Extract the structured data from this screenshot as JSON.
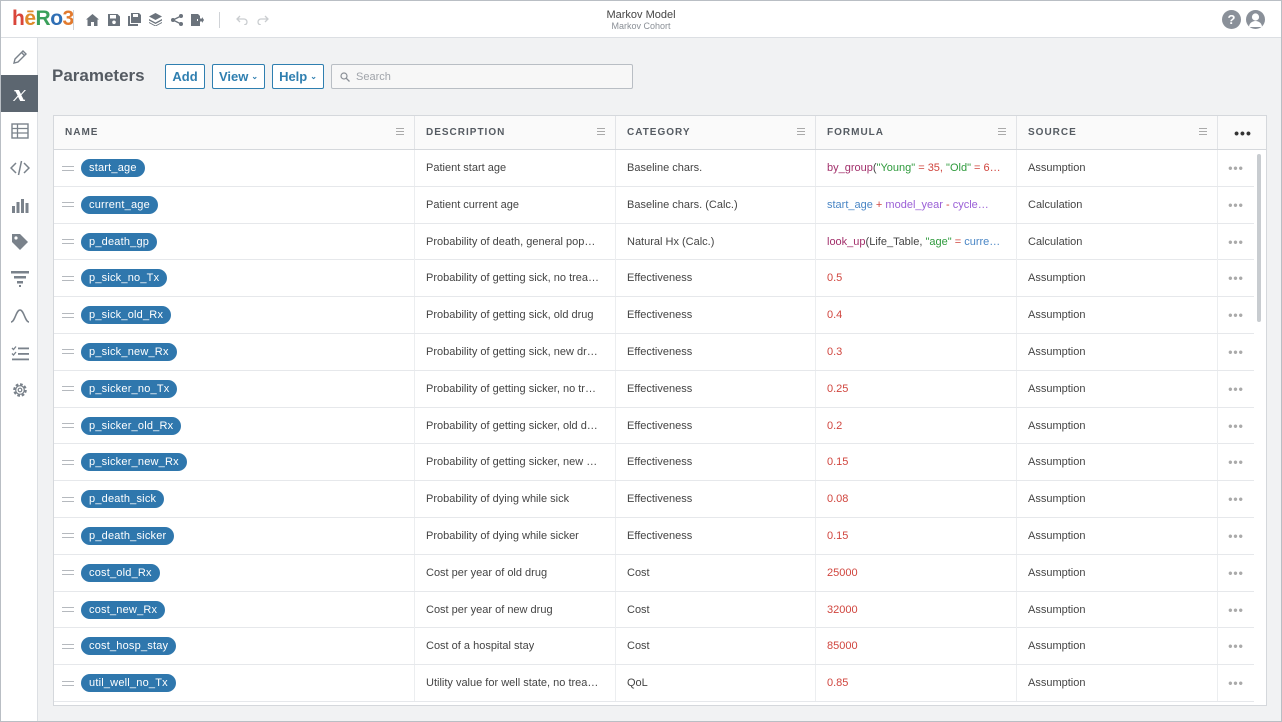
{
  "app": {
    "title": "Markov Model",
    "subtitle": "Markov Cohort"
  },
  "toolbar": {
    "icons": [
      "home-icon",
      "save-icon",
      "save-as-icon",
      "layers-icon",
      "share-icon",
      "export-icon",
      "undo-icon",
      "redo-icon"
    ]
  },
  "header": {
    "help": "?"
  },
  "sidebar": {
    "items": [
      "pencil-icon",
      "variable-icon",
      "table-icon",
      "code-icon",
      "bar-chart-icon",
      "tag-icon",
      "filter-icon",
      "distribution-icon",
      "checklist-icon",
      "gear-icon"
    ],
    "active": "variable-icon"
  },
  "page": {
    "title": "Parameters",
    "add_label": "Add",
    "view_label": "View",
    "help_label": "Help",
    "search_placeholder": "Search"
  },
  "table": {
    "columns": {
      "name": "NAME",
      "description": "DESCRIPTION",
      "category": "CATEGORY",
      "formula": "FORMULA",
      "source": "SOURCE"
    },
    "menu": "•••",
    "row_menu": "•••",
    "formula_rows": {
      "start_age": {
        "fn": "by_group",
        "open": "(",
        "s1": "\"Young\"",
        "op1": " = 35, ",
        "s2": "\"Old\"",
        "op2": " = 6…"
      },
      "current_age": {
        "v1": "start_age",
        "op1": " + ",
        "v2": "model_year",
        "op2": " - ",
        "v3": "cycle…"
      },
      "p_death_gp": {
        "fn": "look_up",
        "a": "(Life_Table, ",
        "s1": "\"age\"",
        "op1": " = ",
        "v1": "curre…"
      }
    },
    "rows": [
      {
        "name": "start_age",
        "description": "Patient start age",
        "category": "Baseline chars.",
        "formula": "",
        "source": "Assumption"
      },
      {
        "name": "current_age",
        "description": "Patient current age",
        "category": "Baseline chars. (Calc.)",
        "formula": "",
        "source": "Calculation"
      },
      {
        "name": "p_death_gp",
        "description": "Probability of death, general pop…",
        "category": "Natural Hx (Calc.)",
        "formula": "",
        "source": "Calculation"
      },
      {
        "name": "p_sick_no_Tx",
        "description": "Probability of getting sick, no trea…",
        "category": "Effectiveness",
        "formula": "0.5",
        "source": "Assumption"
      },
      {
        "name": "p_sick_old_Rx",
        "description": "Probability of getting sick, old drug",
        "category": "Effectiveness",
        "formula": "0.4",
        "source": "Assumption"
      },
      {
        "name": "p_sick_new_Rx",
        "description": "Probability of getting sick, new dr…",
        "category": "Effectiveness",
        "formula": "0.3",
        "source": "Assumption"
      },
      {
        "name": "p_sicker_no_Tx",
        "description": "Probability of getting sicker, no tr…",
        "category": "Effectiveness",
        "formula": "0.25",
        "source": "Assumption"
      },
      {
        "name": "p_sicker_old_Rx",
        "description": "Probability of getting sicker, old d…",
        "category": "Effectiveness",
        "formula": "0.2",
        "source": "Assumption"
      },
      {
        "name": "p_sicker_new_Rx",
        "description": "Probability of getting sicker, new …",
        "category": "Effectiveness",
        "formula": "0.15",
        "source": "Assumption"
      },
      {
        "name": "p_death_sick",
        "description": "Probability of dying while sick",
        "category": "Effectiveness",
        "formula": "0.08",
        "source": "Assumption"
      },
      {
        "name": "p_death_sicker",
        "description": "Probability of dying while sicker",
        "category": "Effectiveness",
        "formula": "0.15",
        "source": "Assumption"
      },
      {
        "name": "cost_old_Rx",
        "description": "Cost per year of old drug",
        "category": "Cost",
        "formula": "25000",
        "source": "Assumption"
      },
      {
        "name": "cost_new_Rx",
        "description": "Cost per year of new drug",
        "category": "Cost",
        "formula": "32000",
        "source": "Assumption"
      },
      {
        "name": "cost_hosp_stay",
        "description": "Cost of a hospital stay",
        "category": "Cost",
        "formula": "85000",
        "source": "Assumption"
      },
      {
        "name": "util_well_no_Tx",
        "description": "Utility value for well state, no trea…",
        "category": "QoL",
        "formula": "0.85",
        "source": "Assumption"
      }
    ]
  }
}
